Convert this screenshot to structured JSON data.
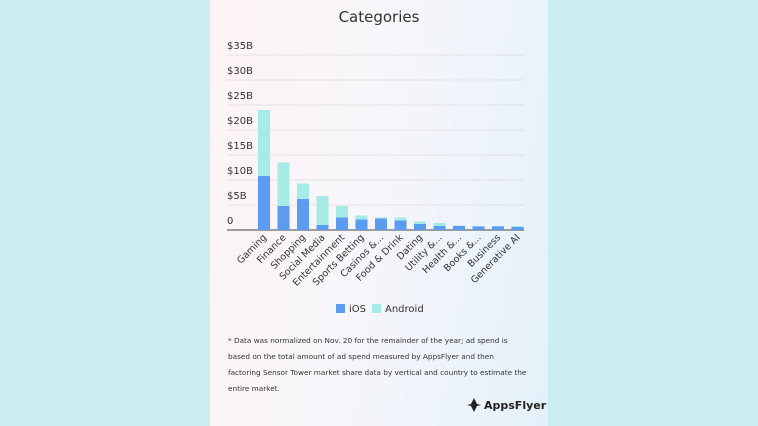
{
  "chart_data": {
    "type": "stacked-bar",
    "title": "Categories",
    "categories": [
      "Gaming",
      "Finance",
      "Shopping",
      "Social Media",
      "Entertainment",
      "Sports Betting",
      "Casinos &...",
      "Food & Drink",
      "Dating",
      "Utility &...",
      "Health &...",
      "Books &...",
      "Business",
      "Generative AI"
    ],
    "series": [
      {
        "name": "iOS",
        "color": "#5b9cf0",
        "values": [
          10.8,
          4.8,
          6.2,
          1.0,
          2.5,
          2.1,
          2.3,
          1.9,
          1.2,
          0.8,
          0.8,
          0.7,
          0.7,
          0.6
        ]
      },
      {
        "name": "Android",
        "color": "#a6ebe5",
        "values": [
          13.2,
          8.7,
          3.1,
          5.8,
          2.3,
          0.8,
          0.2,
          0.6,
          0.5,
          0.6,
          0.1,
          0.1,
          0.1,
          0.2
        ]
      }
    ],
    "ylim": [
      0,
      35
    ],
    "yticks": [
      0,
      {
        "value": 5,
        "label": "$5B"
      },
      {
        "value": 10,
        "label": "$10B"
      },
      {
        "value": 15,
        "label": "$15B"
      },
      {
        "value": 20,
        "label": "$20B"
      },
      {
        "value": 25,
        "label": "$25B"
      },
      {
        "value": 30,
        "label": "$30B"
      },
      {
        "value": 35,
        "label": "$35B"
      }
    ],
    "grid": true,
    "legend": "bottom"
  },
  "footnote": "* Data was normalized on Nov. 20 for the remainder of the year; ad spend is based on the total amount of ad spend measured by AppsFlyer and then factoring Sensor Tower market share data by vertical and country to estimate the entire market.",
  "brand": "AppsFlyer"
}
